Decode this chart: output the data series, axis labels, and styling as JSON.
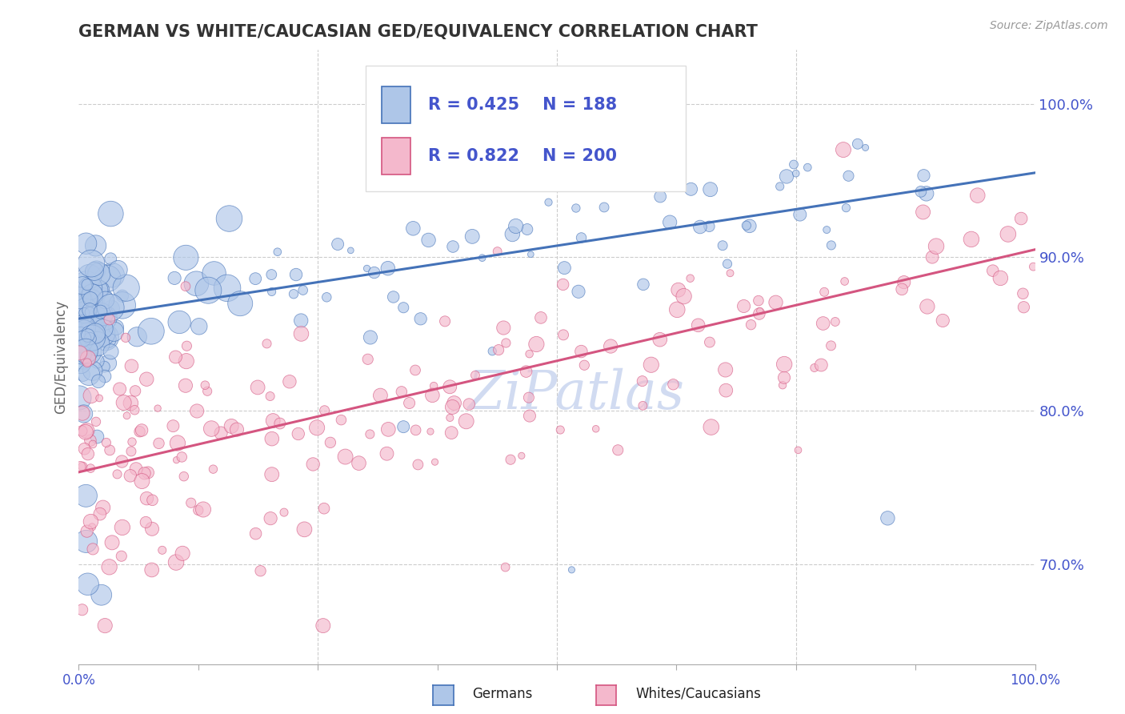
{
  "title": "GERMAN VS WHITE/CAUCASIAN GED/EQUIVALENCY CORRELATION CHART",
  "source": "Source: ZipAtlas.com",
  "ylabel": "GED/Equivalency",
  "xlim": [
    0.0,
    1.0
  ],
  "ylim": [
    0.635,
    1.035
  ],
  "yticks": [
    0.7,
    0.8,
    0.9,
    1.0
  ],
  "ytick_labels": [
    "70.0%",
    "80.0%",
    "90.0%",
    "100.0%"
  ],
  "legend_R_german": "0.425",
  "legend_N_german": "188",
  "legend_R_white": "0.822",
  "legend_N_white": "200",
  "german_color": "#aec6e8",
  "german_edge_color": "#4472b8",
  "white_color": "#f4b8cc",
  "white_edge_color": "#d45580",
  "german_line_color": "#4472b8",
  "white_line_color": "#d45580",
  "background_color": "#ffffff",
  "grid_color": "#cccccc",
  "axis_label_color": "#4455cc",
  "title_color": "#333333",
  "watermark_text": "ZiPatlas",
  "watermark_color": "#ccd8f0"
}
